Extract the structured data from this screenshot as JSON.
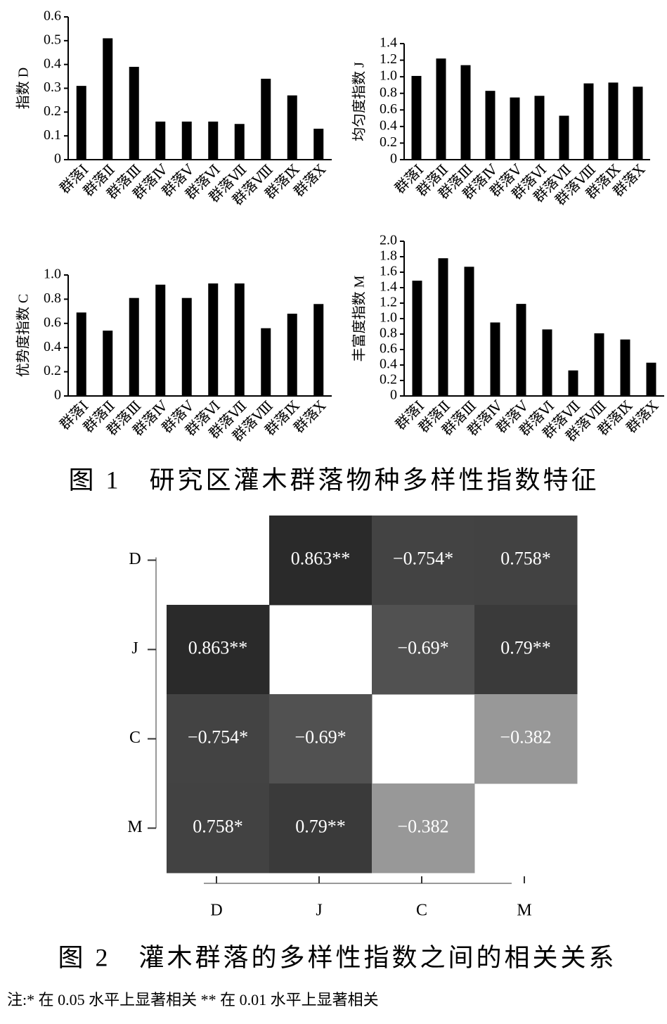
{
  "chart_data": [
    {
      "type": "bar",
      "ylabel": "指数 D",
      "categories": [
        "群落Ⅰ",
        "群落Ⅱ",
        "群落Ⅲ",
        "群落Ⅳ",
        "群落Ⅴ",
        "群落Ⅵ",
        "群落Ⅶ",
        "群落Ⅷ",
        "群落Ⅸ",
        "群落Ⅹ"
      ],
      "values": [
        0.31,
        0.51,
        0.39,
        0.16,
        0.16,
        0.16,
        0.15,
        0.34,
        0.27,
        0.13
      ],
      "color": "#000000",
      "ylim": [
        0,
        0.6
      ],
      "yticks": [
        0,
        0.1,
        0.2,
        0.3,
        0.4,
        0.5,
        0.6
      ]
    },
    {
      "type": "bar",
      "ylabel": "均匀度指数 J",
      "categories": [
        "群落Ⅰ",
        "群落Ⅱ",
        "群落Ⅲ",
        "群落Ⅳ",
        "群落Ⅴ",
        "群落Ⅵ",
        "群落Ⅶ",
        "群落Ⅷ",
        "群落Ⅸ",
        "群落Ⅹ"
      ],
      "values": [
        1.01,
        1.22,
        1.14,
        0.83,
        0.75,
        0.77,
        0.53,
        0.92,
        0.93,
        0.88
      ],
      "color": "#000000",
      "ylim": [
        0,
        1.4
      ],
      "yticks": [
        0,
        0.2,
        0.4,
        0.6,
        0.8,
        {
          "value": 1,
          "label": "1.0"
        },
        1.2,
        1.4
      ]
    },
    {
      "type": "bar",
      "ylabel": "优势度指数 C",
      "categories": [
        "群落Ⅰ",
        "群落Ⅱ",
        "群落Ⅲ",
        "群落Ⅳ",
        "群落Ⅴ",
        "群落Ⅵ",
        "群落Ⅶ",
        "群落Ⅷ",
        "群落Ⅸ",
        "群落Ⅹ"
      ],
      "values": [
        0.69,
        0.54,
        0.81,
        0.92,
        0.81,
        0.93,
        0.93,
        0.56,
        0.68,
        0.76
      ],
      "color": "#000000",
      "ylim": [
        0,
        1
      ],
      "yticks": [
        0,
        0.2,
        0.4,
        0.6,
        0.8,
        {
          "value": 1,
          "label": "1.0"
        }
      ]
    },
    {
      "type": "bar",
      "ylabel": "丰富度指数 M",
      "categories": [
        "群落Ⅰ",
        "群落Ⅱ",
        "群落Ⅲ",
        "群落Ⅳ",
        "群落Ⅴ",
        "群落Ⅵ",
        "群落Ⅶ",
        "群落Ⅷ",
        "群落Ⅸ",
        "群落Ⅹ"
      ],
      "values": [
        1.49,
        1.78,
        1.67,
        0.95,
        1.19,
        0.86,
        0.33,
        0.81,
        0.73,
        0.43
      ],
      "color": "#000000",
      "ylim": [
        0,
        2
      ],
      "yticks": [
        0,
        0.2,
        0.4,
        0.6,
        0.8,
        {
          "value": 1,
          "label": "1.0"
        },
        1.2,
        1.4,
        1.6,
        1.8,
        {
          "value": 2,
          "label": "2.0"
        }
      ]
    },
    {
      "type": "heatmap",
      "rows": [
        "D",
        "J",
        "C",
        "M"
      ],
      "columns": [
        "D",
        "J",
        "C",
        "M"
      ],
      "values": [
        [
          null,
          0.863,
          -0.754,
          0.758
        ],
        [
          0.863,
          null,
          -0.69,
          0.79
        ],
        [
          -0.754,
          -0.69,
          null,
          -0.382
        ],
        [
          0.758,
          0.79,
          -0.382,
          null
        ]
      ],
      "value_labels": [
        [
          null,
          "0.863**",
          "−0.754*",
          "0.758*"
        ],
        [
          "0.863**",
          null,
          "−0.69*",
          "0.79**"
        ],
        [
          "−0.754*",
          "−0.69*",
          null,
          "−0.382"
        ],
        [
          "0.758*",
          "0.79**",
          "−0.382",
          null
        ]
      ]
    }
  ],
  "figure1_caption": "图 1　研究区灌木群落物种多样性指数特征",
  "figure2_caption": "图 2　灌木群落的多样性指数之间的相关关系",
  "note": "注:* 在 0.05 水平上显著相关 ** 在 0.01 水平上显著相关"
}
